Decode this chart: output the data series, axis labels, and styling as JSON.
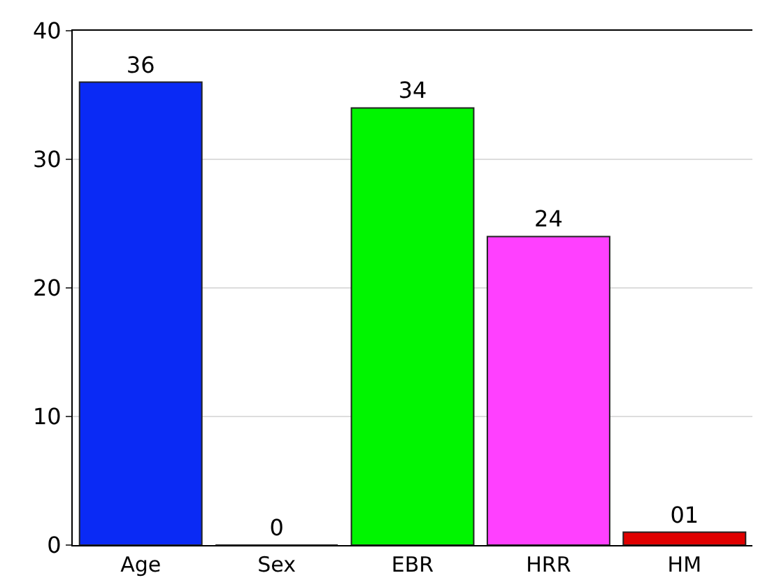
{
  "chart_data": {
    "type": "bar",
    "categories": [
      "Age",
      "Sex",
      "EBR",
      "HRR",
      "HM"
    ],
    "values": [
      36,
      0,
      34,
      24,
      1
    ],
    "colors": [
      "#0a2af5",
      "#222222",
      "#00f500",
      "#ff40ff",
      "#e00000"
    ],
    "value_labels": [
      "36",
      "0",
      "34",
      "24",
      "01"
    ],
    "ylim": [
      0,
      40
    ],
    "yticks": [
      0,
      10,
      20,
      30,
      40
    ],
    "grid": "y",
    "legend": false
  }
}
